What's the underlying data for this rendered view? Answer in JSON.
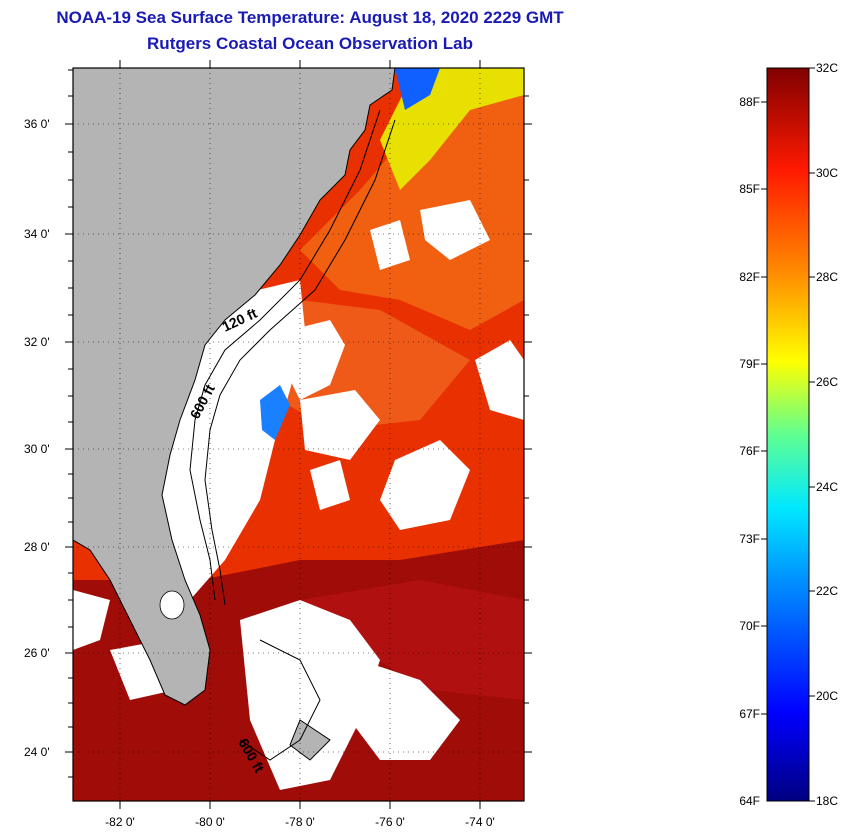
{
  "header": {
    "title": "NOAA-19 Sea Surface Temperature:  August 18, 2020 2229 GMT",
    "subtitle": "Rutgers Coastal Ocean Observation Lab"
  },
  "map": {
    "lat_range": [
      23.0,
      37.0
    ],
    "lon_range": [
      -83.0,
      -73.0
    ],
    "lat_labels": [
      "36 0'",
      "34 0'",
      "32 0'",
      "30 0'",
      "28 0'",
      "26 0'",
      "24 0'"
    ],
    "lon_labels": [
      "-82 0'",
      "-80 0'",
      "-78 0'",
      "-76 0'",
      "-74 0'"
    ],
    "contour_labels": [
      "120 ft",
      "600 ft",
      "600 ft"
    ],
    "colors": {
      "land": "#b4b4b4",
      "cloud": "#ffffff",
      "frame": "#000000",
      "grid": "#000000"
    }
  },
  "colorbar": {
    "celsius_labels": [
      "32C",
      "30C",
      "28C",
      "26C",
      "24C",
      "22C",
      "20C",
      "18C"
    ],
    "fahrenheit_labels": [
      "88F",
      "85F",
      "82F",
      "79F",
      "76F",
      "73F",
      "70F",
      "67F",
      "64F"
    ],
    "range_c": [
      18,
      32
    ],
    "stops": [
      "#000080",
      "#0000ff",
      "#0080ff",
      "#00ffff",
      "#80ff80",
      "#ffff00",
      "#ff8000",
      "#ff0000",
      "#800000"
    ]
  }
}
